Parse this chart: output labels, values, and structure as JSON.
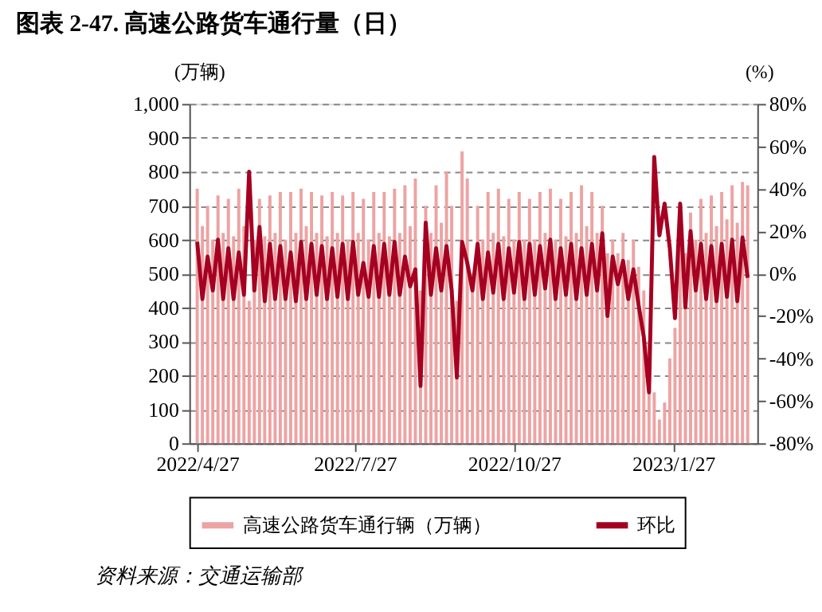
{
  "chart_data": {
    "type": "bar",
    "title": "图表 2-47. 高速公路货车通行量（日）",
    "ylabel": "(万辆)",
    "y2label": "(%)",
    "annotations": [
      "资料来源：交通运输部"
    ],
    "x": [
      "2022-04-27",
      "2022-04-30",
      "2022-05-03",
      "2022-05-06",
      "2022-05-09",
      "2022-05-12",
      "2022-05-15",
      "2022-05-18",
      "2022-05-21",
      "2022-05-24",
      "2022-05-27",
      "2022-05-30",
      "2022-06-02",
      "2022-06-05",
      "2022-06-08",
      "2022-06-11",
      "2022-06-14",
      "2022-06-17",
      "2022-06-20",
      "2022-06-23",
      "2022-06-26",
      "2022-06-29",
      "2022-07-02",
      "2022-07-05",
      "2022-07-08",
      "2022-07-11",
      "2022-07-14",
      "2022-07-17",
      "2022-07-20",
      "2022-07-23",
      "2022-07-26",
      "2022-07-29",
      "2022-08-01",
      "2022-08-04",
      "2022-08-07",
      "2022-08-10",
      "2022-08-13",
      "2022-08-16",
      "2022-08-19",
      "2022-08-22",
      "2022-08-25",
      "2022-08-28",
      "2022-08-31",
      "2022-09-03",
      "2022-09-06",
      "2022-09-09",
      "2022-09-12",
      "2022-09-15",
      "2022-09-18",
      "2022-09-21",
      "2022-09-24",
      "2022-09-27",
      "2022-09-30",
      "2022-10-03",
      "2022-10-06",
      "2022-10-09",
      "2022-10-12",
      "2022-10-15",
      "2022-10-18",
      "2022-10-21",
      "2022-10-24",
      "2022-10-27",
      "2022-10-30",
      "2022-11-02",
      "2022-11-05",
      "2022-11-08",
      "2022-11-11",
      "2022-11-14",
      "2022-11-17",
      "2022-11-20",
      "2022-11-23",
      "2022-11-26",
      "2022-11-29",
      "2022-12-02",
      "2022-12-05",
      "2022-12-08",
      "2022-12-11",
      "2022-12-14",
      "2022-12-17",
      "2022-12-20",
      "2022-12-23",
      "2022-12-26",
      "2022-12-29",
      "2023-01-01",
      "2023-01-04",
      "2023-01-07",
      "2023-01-10",
      "2023-01-13",
      "2023-01-16",
      "2023-01-19",
      "2023-01-22",
      "2023-01-25",
      "2023-01-28",
      "2023-01-31",
      "2023-02-03",
      "2023-02-06",
      "2023-02-09",
      "2023-02-12",
      "2023-02-15",
      "2023-02-18",
      "2023-02-21",
      "2023-02-24",
      "2023-02-27",
      "2023-03-02",
      "2023-03-05",
      "2023-03-08",
      "2023-03-11"
    ],
    "series": [
      {
        "name": "高速公路货车通行辆（万辆）",
        "color": "#eda3a3",
        "values": [
          750,
          640,
          700,
          600,
          730,
          620,
          720,
          610,
          750,
          640,
          420,
          600,
          720,
          610,
          730,
          620,
          740,
          600,
          740,
          620,
          750,
          640,
          740,
          620,
          730,
          610,
          740,
          620,
          730,
          600,
          740,
          620,
          720,
          600,
          740,
          620,
          740,
          610,
          750,
          620,
          760,
          640,
          780,
          450,
          700,
          620,
          760,
          650,
          800,
          700,
          420,
          860,
          780,
          500,
          700,
          600,
          740,
          620,
          750,
          610,
          720,
          600,
          740,
          600,
          720,
          600,
          740,
          620,
          750,
          600,
          720,
          610,
          740,
          620,
          760,
          640,
          740,
          620,
          700,
          560,
          600,
          560,
          620,
          540,
          600,
          520,
          450,
          300,
          150,
          70,
          120,
          250,
          340,
          600,
          560,
          680,
          600,
          720,
          620,
          730,
          640,
          740,
          660,
          760,
          650,
          770,
          760
        ]
      },
      {
        "name": "环比",
        "type": "line",
        "axis": "y2",
        "color": "#a50021",
        "values": [
          15,
          -12,
          8,
          -8,
          16,
          -12,
          12,
          -12,
          10,
          -10,
          48,
          -8,
          22,
          -13,
          14,
          -12,
          13,
          -12,
          10,
          -13,
          15,
          -12,
          14,
          -10,
          13,
          -12,
          12,
          -11,
          14,
          -12,
          15,
          -10,
          5,
          -11,
          13,
          -11,
          14,
          -10,
          15,
          -10,
          8,
          -6,
          2,
          -53,
          24,
          -10,
          12,
          -8,
          13,
          -8,
          -49,
          15,
          5,
          -8,
          14,
          -12,
          10,
          -9,
          14,
          -12,
          12,
          -9,
          15,
          -12,
          14,
          -10,
          13,
          -7,
          16,
          -12,
          12,
          -10,
          14,
          -12,
          12,
          -10,
          14,
          -8,
          19,
          -20,
          8,
          -5,
          6,
          -12,
          2,
          -15,
          -30,
          -56,
          55,
          18,
          33,
          12,
          -21,
          33,
          -16,
          20,
          -8,
          14,
          -12,
          13,
          -13,
          14,
          -11,
          16,
          -13,
          17,
          -2
        ]
      }
    ],
    "xlim": [
      "2022-04-27",
      "2023-03-12"
    ],
    "xticks": [
      {
        "value": "2022-04-27",
        "label": "2022/4/27"
      },
      {
        "value": "2022-07-27",
        "label": "2022/7/27"
      },
      {
        "value": "2022-10-27",
        "label": "2022/10/27"
      },
      {
        "value": "2023-01-27",
        "label": "2023/1/27"
      }
    ],
    "ylim": [
      0,
      1000
    ],
    "yticks": [
      0,
      100,
      200,
      300,
      400,
      500,
      600,
      700,
      800,
      900,
      {
        "value": 1000,
        "label": "1,000"
      }
    ],
    "y2lim": [
      -80,
      80
    ],
    "y2ticks": [
      {
        "value": -80,
        "label": "-80%"
      },
      {
        "value": -60,
        "label": "-60%"
      },
      {
        "value": -40,
        "label": "-40%"
      },
      {
        "value": -20,
        "label": "-20%"
      },
      {
        "value": 0,
        "label": "0%"
      },
      {
        "value": 20,
        "label": "20%"
      },
      {
        "value": 40,
        "label": "40%"
      },
      {
        "value": 60,
        "label": "60%"
      },
      {
        "value": 80,
        "label": "80%"
      }
    ],
    "grid": "y",
    "legend": "bottom"
  }
}
